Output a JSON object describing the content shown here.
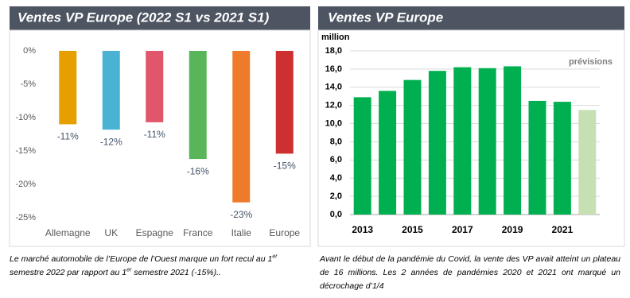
{
  "chart_data": [
    {
      "type": "bar",
      "title": "Ventes VP Europe (2022 S1 vs 2021 S1)",
      "categories": [
        "Allemagne",
        "UK",
        "Espagne",
        "France",
        "Italie",
        "Europe"
      ],
      "values": [
        -11,
        -11.8,
        -10.7,
        -16.2,
        -22.7,
        -15.4
      ],
      "value_labels": [
        "-11%",
        "-12%",
        "-11%",
        "-16%",
        "-23%",
        "-15%"
      ],
      "colors": [
        "#e5a000",
        "#4ab3d4",
        "#e0566a",
        "#58b55a",
        "#f07a2c",
        "#cc3030"
      ],
      "ylim": [
        -25,
        0
      ],
      "yticks": [
        {
          "value": 0,
          "label": "0%"
        },
        {
          "value": -5,
          "label": "-5%"
        },
        {
          "value": -10,
          "label": "-10%"
        },
        {
          "value": -15,
          "label": "-15%"
        },
        {
          "value": -20,
          "label": "-20%"
        },
        {
          "value": -25,
          "label": "-25%"
        }
      ],
      "caption": [
        "Le marché automobile de l’Europe de l’Ouest marque un fort recul au 1",
        "er",
        "semestre 2022 par rapport au 1",
        "er",
        " semestre 2021 (-15%).."
      ]
    },
    {
      "type": "bar",
      "title": "Ventes VP Europe",
      "y_label": "million",
      "annotation": "prévisions",
      "categories": [
        "2013",
        null,
        "2015",
        null,
        "2017",
        null,
        "2019",
        null,
        "2021",
        null
      ],
      "values": [
        12.9,
        13.6,
        14.8,
        15.8,
        16.2,
        16.1,
        16.3,
        12.5,
        12.4,
        11.5
      ],
      "colors": [
        "#00b050",
        "#00b050",
        "#00b050",
        "#00b050",
        "#00b050",
        "#00b050",
        "#00b050",
        "#00b050",
        "#00b050",
        "#c6e0b4"
      ],
      "ylim": [
        0,
        18
      ],
      "grid": true,
      "yticks": [
        {
          "value": 0,
          "label": "0,0"
        },
        {
          "value": 2,
          "label": "2,0"
        },
        {
          "value": 4,
          "label": "4,0"
        },
        {
          "value": 6,
          "label": "6,0"
        },
        {
          "value": 8,
          "label": "8,0"
        },
        {
          "value": 10,
          "label": "10,0"
        },
        {
          "value": 12,
          "label": "12,0"
        },
        {
          "value": 14,
          "label": "14,0"
        },
        {
          "value": 16,
          "label": "16,0"
        },
        {
          "value": 18,
          "label": "18,0"
        }
      ],
      "caption": [
        "Avant le début de la pandémie du Covid, la vente des VP avait atteint un plateau de 16 millions. Les 2 années de pandémies 2020 et 2021 ont marqué un décrochage d’1/4"
      ]
    }
  ]
}
